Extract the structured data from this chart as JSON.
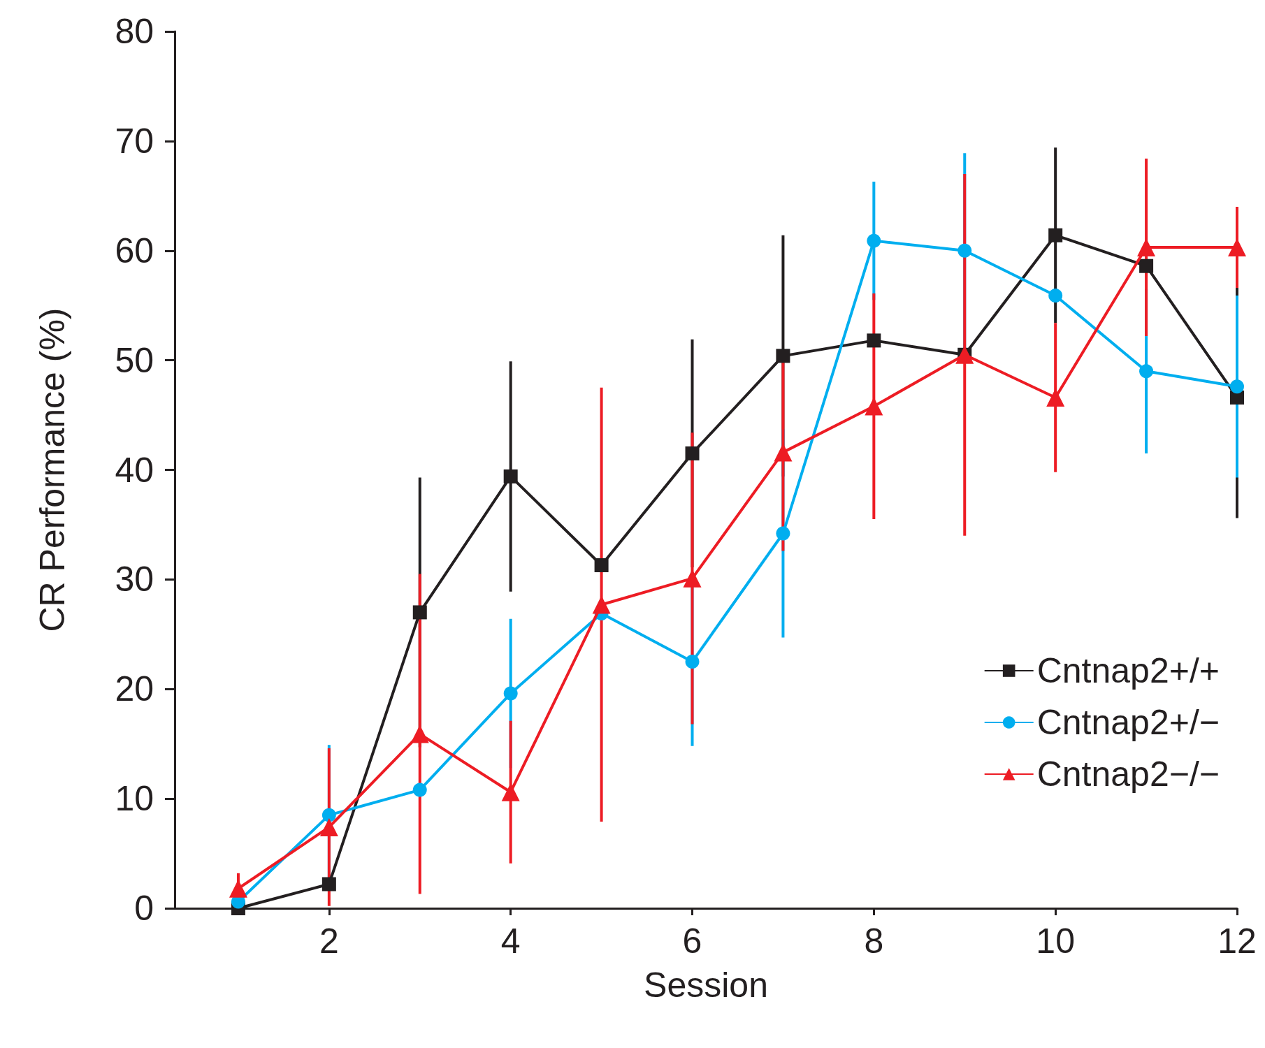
{
  "chart_data": {
    "type": "line",
    "xlabel": "Session",
    "ylabel": "CR Performance (%)",
    "x": [
      1,
      2,
      3,
      4,
      5,
      6,
      7,
      8,
      9,
      10,
      11,
      12
    ],
    "xlim": [
      0.3,
      12
    ],
    "xticks": [
      2,
      4,
      6,
      8,
      10,
      12
    ],
    "ylim": [
      0,
      80
    ],
    "yticks": [
      0,
      10,
      20,
      30,
      40,
      50,
      60,
      70,
      80
    ],
    "grid": false,
    "legend": "right",
    "line_style": "solid",
    "series": [
      {
        "name": "Cntnap2+/+",
        "color": "#231f20",
        "marker": "square",
        "values": [
          0,
          2.2,
          27,
          39.4,
          31.3,
          41.5,
          50.4,
          51.8,
          50.5,
          61.4,
          58.6,
          46.6
        ],
        "errors": [
          null,
          null,
          12.3,
          10.5,
          null,
          10.4,
          11,
          null,
          null,
          8,
          null,
          11
        ]
      },
      {
        "name": "Cntnap2+/−",
        "color": "#00aeef",
        "marker": "circle",
        "values": [
          0.6,
          8.5,
          10.8,
          19.6,
          26.9,
          22.5,
          34.2,
          60.9,
          60,
          55.9,
          49,
          47.6
        ],
        "errors": [
          null,
          6.4,
          null,
          6.8,
          null,
          7.7,
          9.5,
          5.4,
          8.9,
          null,
          7.5,
          8.3
        ]
      },
      {
        "name": "Cntnap2−/−",
        "color": "#ed1c24",
        "marker": "triangle",
        "values": [
          1.8,
          7.4,
          15.9,
          10.6,
          27.7,
          30.1,
          41.6,
          45.8,
          50.5,
          46.6,
          60.3,
          60.3
        ],
        "errors": [
          1.4,
          7.2,
          14.6,
          6.5,
          19.8,
          13.3,
          9,
          10.3,
          16.5,
          6.8,
          8.1,
          3.7
        ]
      }
    ]
  }
}
